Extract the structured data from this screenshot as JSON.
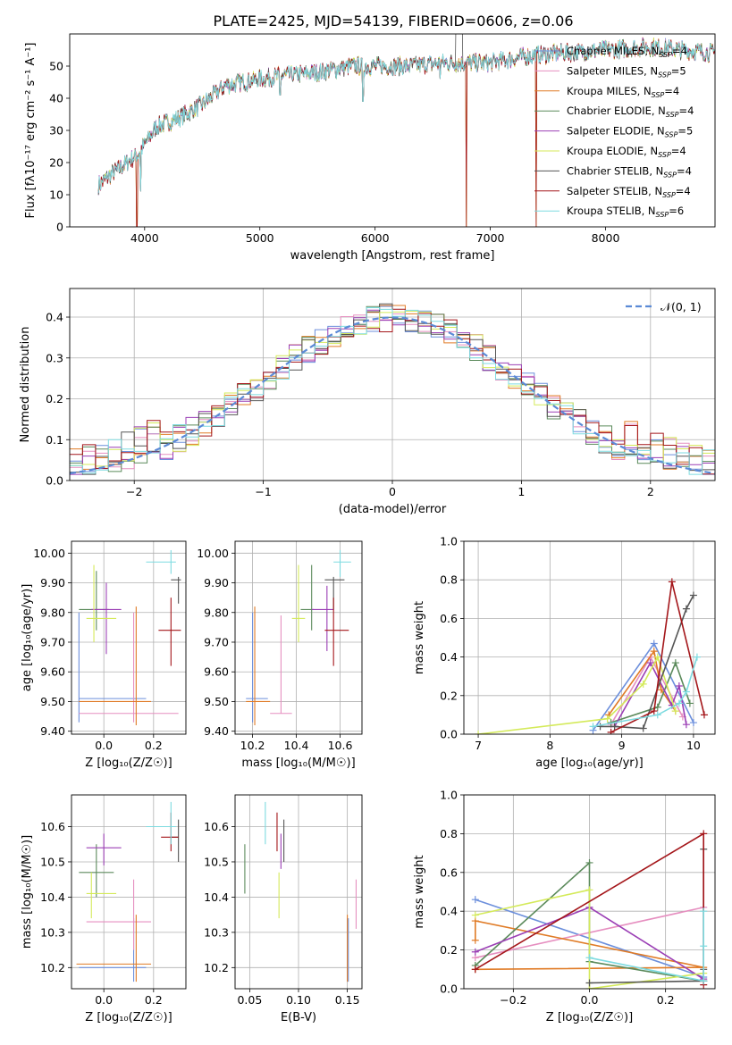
{
  "figure_title": "PLATE=2425, MJD=54139, FIBERID=0606, z=0.06",
  "models": [
    {
      "name": "Chabrier MILES",
      "nssp": "4",
      "color": "#6c8fdc"
    },
    {
      "name": "Salpeter MILES",
      "nssp": "5",
      "color": "#e68fc0"
    },
    {
      "name": "Kroupa MILES",
      "nssp": "4",
      "color": "#e07b26"
    },
    {
      "name": "Chabrier ELODIE",
      "nssp": "4",
      "color": "#5b8a5b"
    },
    {
      "name": "Salpeter ELODIE",
      "nssp": "5",
      "color": "#9b3fb5"
    },
    {
      "name": "Kroupa ELODIE",
      "nssp": "4",
      "color": "#d4ea5a"
    },
    {
      "name": "Chabrier STELIB",
      "nssp": "4",
      "color": "#555555"
    },
    {
      "name": "Salpeter STELIB",
      "nssp": "4",
      "color": "#a4161a"
    },
    {
      "name": "Kroupa STELIB",
      "nssp": "6",
      "color": "#7edbe0"
    }
  ],
  "chart_data": [
    {
      "id": "spectrum",
      "type": "line",
      "xlabel": "wavelength [Angstrom, rest frame]",
      "ylabel": "Flux [fλ10⁻¹⁷ erg cm⁻² s⁻¹ A⁻¹]",
      "xlim": [
        3350,
        8950
      ],
      "ylim": [
        0,
        60
      ],
      "xticks": [
        4000,
        5000,
        6000,
        7000,
        8000
      ],
      "yticks": [
        0,
        10,
        20,
        30,
        40,
        50
      ],
      "legend_loc": "right",
      "grid": false,
      "data_range": [
        3600,
        8950
      ],
      "continuum": [
        [
          3600,
          13
        ],
        [
          3700,
          16
        ],
        [
          3850,
          20
        ],
        [
          3950,
          23
        ],
        [
          4100,
          31
        ],
        [
          4300,
          34
        ],
        [
          4500,
          38
        ],
        [
          4700,
          44
        ],
        [
          5000,
          46
        ],
        [
          5200,
          47
        ],
        [
          5500,
          48
        ],
        [
          5800,
          50
        ],
        [
          6000,
          50
        ],
        [
          6300,
          50
        ],
        [
          6600,
          51
        ],
        [
          6800,
          51
        ],
        [
          7000,
          51
        ],
        [
          7300,
          53
        ],
        [
          7600,
          54
        ],
        [
          8000,
          55
        ],
        [
          8400,
          56
        ],
        [
          8950,
          54
        ]
      ],
      "downspikes": [
        [
          3933,
          0
        ],
        [
          3968,
          11
        ],
        [
          4861,
          43
        ],
        [
          5175,
          41
        ],
        [
          5895,
          39
        ],
        [
          6563,
          46
        ],
        [
          6790,
          0
        ],
        [
          7400,
          0
        ]
      ]
    },
    {
      "id": "residuals",
      "type": "step-histogram",
      "xlabel": "(data-model)/error",
      "ylabel": "Normed distribution",
      "xlim": [
        -2.5,
        2.5
      ],
      "ylim": [
        0,
        0.47
      ],
      "xticks": [
        -2,
        -1,
        0,
        1,
        2
      ],
      "yticks": [
        0.0,
        0.1,
        0.2,
        0.3,
        0.4
      ],
      "grid": true,
      "legend_loc": "top-right",
      "bin_width": 0.1,
      "bin_start": -2.5,
      "reference_label": "𝒩(0, 1)",
      "reference_color": "#5b8ad6"
    },
    {
      "id": "age-vs-Z",
      "type": "errorbar",
      "xlabel": "Z [log₁₀(Z/Z☉)]",
      "ylabel": "age  [log₁₀(age/yr)]",
      "xlim": [
        -0.13,
        0.33
      ],
      "ylim": [
        9.39,
        10.04
      ],
      "xticks": [
        0.0,
        0.2
      ],
      "yticks": [
        9.4,
        9.5,
        9.6,
        9.7,
        9.8,
        9.9,
        10.0
      ],
      "grid": true,
      "points": [
        {
          "x": -0.1,
          "xlo": -0.1,
          "xhi": 0.17,
          "y": 9.51,
          "ylo": 9.43,
          "yhi": 9.8
        },
        {
          "x": 0.12,
          "xlo": -0.1,
          "xhi": 0.3,
          "y": 9.46,
          "ylo": 9.43,
          "yhi": 9.8
        },
        {
          "x": 0.13,
          "xlo": -0.1,
          "xhi": 0.19,
          "y": 9.5,
          "ylo": 9.42,
          "yhi": 9.82
        },
        {
          "x": -0.03,
          "xlo": -0.1,
          "xhi": 0.02,
          "y": 9.81,
          "ylo": 9.74,
          "yhi": 9.94
        },
        {
          "x": 0.01,
          "xlo": -0.05,
          "xhi": 0.07,
          "y": 9.81,
          "ylo": 9.66,
          "yhi": 9.9
        },
        {
          "x": -0.04,
          "xlo": -0.07,
          "xhi": 0.05,
          "y": 9.78,
          "ylo": 9.7,
          "yhi": 9.96
        },
        {
          "x": 0.3,
          "xlo": 0.27,
          "xhi": 0.31,
          "y": 9.91,
          "ylo": 9.83,
          "yhi": 9.92
        },
        {
          "x": 0.27,
          "xlo": 0.22,
          "xhi": 0.31,
          "y": 9.74,
          "ylo": 9.62,
          "yhi": 9.85
        },
        {
          "x": 0.27,
          "xlo": 0.17,
          "xhi": 0.29,
          "y": 9.97,
          "ylo": 9.93,
          "yhi": 10.01
        }
      ]
    },
    {
      "id": "age-vs-mass",
      "type": "errorbar",
      "xlabel": "mass [log₁₀(M/M☉)]",
      "ylabel": "",
      "xlim": [
        10.12,
        10.7
      ],
      "ylim": [
        9.39,
        10.04
      ],
      "xticks": [
        10.2,
        10.4,
        10.6
      ],
      "yticks": [
        9.4,
        9.5,
        9.6,
        9.7,
        9.8,
        9.9,
        10.0
      ],
      "grid": true,
      "points": [
        {
          "x": 10.2,
          "xlo": 10.17,
          "xhi": 10.27,
          "y": 9.51,
          "ylo": 9.43,
          "yhi": 9.8
        },
        {
          "x": 10.33,
          "xlo": 10.28,
          "xhi": 10.38,
          "y": 9.46,
          "ylo": 9.46,
          "yhi": 9.79
        },
        {
          "x": 10.21,
          "xlo": 10.17,
          "xhi": 10.28,
          "y": 9.5,
          "ylo": 9.42,
          "yhi": 9.82
        },
        {
          "x": 10.47,
          "xlo": 10.42,
          "xhi": 10.48,
          "y": 9.81,
          "ylo": 9.74,
          "yhi": 9.96
        },
        {
          "x": 10.54,
          "xlo": 10.47,
          "xhi": 10.57,
          "y": 9.81,
          "ylo": 9.67,
          "yhi": 9.89
        },
        {
          "x": 10.41,
          "xlo": 10.38,
          "xhi": 10.44,
          "y": 9.78,
          "ylo": 9.7,
          "yhi": 9.96
        },
        {
          "x": 10.57,
          "xlo": 10.53,
          "xhi": 10.62,
          "y": 9.91,
          "ylo": 9.81,
          "yhi": 9.92
        },
        {
          "x": 10.57,
          "xlo": 10.53,
          "xhi": 10.64,
          "y": 9.74,
          "ylo": 9.62,
          "yhi": 9.85
        },
        {
          "x": 10.6,
          "xlo": 10.57,
          "xhi": 10.65,
          "y": 9.97,
          "ylo": 9.92,
          "yhi": 10.01
        }
      ]
    },
    {
      "id": "weight-vs-age",
      "type": "line",
      "xlabel": "age  [log₁₀(age/yr)]",
      "ylabel": "mass weight",
      "xlim": [
        6.8,
        10.3
      ],
      "ylim": [
        0,
        1
      ],
      "xticks": [
        7,
        8,
        9,
        10
      ],
      "yticks": [
        0.0,
        0.2,
        0.4,
        0.6,
        0.8,
        1.0
      ],
      "grid": true,
      "series": [
        {
          "points": [
            [
              8.6,
              0.02
            ],
            [
              9.45,
              0.47
            ],
            [
              10.0,
              0.06
            ]
          ]
        },
        {
          "points": [
            [
              8.85,
              0.05
            ],
            [
              9.4,
              0.4
            ],
            [
              9.85,
              0.09
            ]
          ]
        },
        {
          "points": [
            [
              8.82,
              0.1
            ],
            [
              9.45,
              0.43
            ],
            [
              9.55,
              0.23
            ],
            [
              9.75,
              0.12
            ]
          ]
        },
        {
          "points": [
            [
              8.85,
              0.06
            ],
            [
              9.5,
              0.14
            ],
            [
              9.75,
              0.37
            ],
            [
              9.95,
              0.16
            ]
          ]
        },
        {
          "points": [
            [
              8.9,
              0.04
            ],
            [
              9.4,
              0.37
            ],
            [
              9.7,
              0.15
            ],
            [
              9.8,
              0.25
            ],
            [
              9.9,
              0.05
            ]
          ]
        },
        {
          "points": [
            [
              7.0,
              0.0
            ],
            [
              8.8,
              0.08
            ],
            [
              9.3,
              0.26
            ],
            [
              9.5,
              0.4
            ],
            [
              9.75,
              0.12
            ]
          ]
        },
        {
          "points": [
            [
              8.7,
              0.04
            ],
            [
              8.9,
              0.04
            ],
            [
              9.3,
              0.03
            ],
            [
              9.9,
              0.65
            ],
            [
              10.0,
              0.72
            ]
          ]
        },
        {
          "points": [
            [
              8.85,
              0.01
            ],
            [
              9.45,
              0.12
            ],
            [
              9.7,
              0.79
            ],
            [
              10.15,
              0.1
            ]
          ]
        },
        {
          "points": [
            [
              8.6,
              0.04
            ],
            [
              9.5,
              0.1
            ],
            [
              9.8,
              0.16
            ],
            [
              9.9,
              0.22
            ],
            [
              10.05,
              0.4
            ]
          ]
        }
      ]
    },
    {
      "id": "mass-vs-Z",
      "type": "errorbar",
      "xlabel": "Z [log₁₀(Z/Z☉)]",
      "ylabel": "mass [log₁₀(M/M☉)]",
      "xlim": [
        -0.13,
        0.33
      ],
      "ylim": [
        10.14,
        10.69
      ],
      "xticks": [
        0.0,
        0.2
      ],
      "yticks": [
        10.2,
        10.3,
        10.4,
        10.5,
        10.6
      ],
      "grid": true,
      "points": [
        {
          "x": 0.12,
          "xlo": -0.1,
          "xhi": 0.17,
          "y": 10.2,
          "ylo": 10.16,
          "yhi": 10.34
        },
        {
          "x": 0.12,
          "xlo": -0.07,
          "xhi": 0.19,
          "y": 10.33,
          "ylo": 10.25,
          "yhi": 10.45
        },
        {
          "x": 0.13,
          "xlo": -0.11,
          "xhi": 0.19,
          "y": 10.21,
          "ylo": 10.16,
          "yhi": 10.35
        },
        {
          "x": -0.03,
          "xlo": -0.1,
          "xhi": 0.04,
          "y": 10.47,
          "ylo": 10.4,
          "yhi": 10.55
        },
        {
          "x": 0.0,
          "xlo": -0.07,
          "xhi": 0.07,
          "y": 10.54,
          "ylo": 10.49,
          "yhi": 10.58
        },
        {
          "x": -0.05,
          "xlo": -0.07,
          "xhi": 0.05,
          "y": 10.41,
          "ylo": 10.34,
          "yhi": 10.47
        },
        {
          "x": 0.3,
          "xlo": 0.27,
          "xhi": 0.3,
          "y": 10.57,
          "ylo": 10.5,
          "yhi": 10.62
        },
        {
          "x": 0.27,
          "xlo": 0.23,
          "xhi": 0.3,
          "y": 10.57,
          "ylo": 10.53,
          "yhi": 10.64
        },
        {
          "x": 0.27,
          "xlo": 0.17,
          "xhi": 0.29,
          "y": 10.6,
          "ylo": 10.55,
          "yhi": 10.67
        }
      ]
    },
    {
      "id": "mass-vs-EBV",
      "type": "errorbar",
      "xlabel": "E(B-V)",
      "ylabel": "",
      "xlim": [
        0.035,
        0.165
      ],
      "ylim": [
        10.14,
        10.69
      ],
      "xticks": [
        0.05,
        0.1,
        0.15
      ],
      "yticks": [
        10.2,
        10.3,
        10.4,
        10.5,
        10.6
      ],
      "grid": true,
      "points": [
        {
          "x": 0.151,
          "xlo": 0.151,
          "xhi": 0.151,
          "y": 10.2,
          "ylo": 10.16,
          "yhi": 10.34
        },
        {
          "x": 0.159,
          "xlo": 0.159,
          "xhi": 0.159,
          "y": 10.33,
          "ylo": 10.31,
          "yhi": 10.45
        },
        {
          "x": 0.15,
          "xlo": 0.15,
          "xhi": 0.15,
          "y": 10.21,
          "ylo": 10.16,
          "yhi": 10.35
        },
        {
          "x": 0.045,
          "xlo": 0.045,
          "xhi": 0.045,
          "y": 10.47,
          "ylo": 10.41,
          "yhi": 10.55
        },
        {
          "x": 0.082,
          "xlo": 0.082,
          "xhi": 0.082,
          "y": 10.54,
          "ylo": 10.48,
          "yhi": 10.58
        },
        {
          "x": 0.08,
          "xlo": 0.08,
          "xhi": 0.08,
          "y": 10.41,
          "ylo": 10.34,
          "yhi": 10.47
        },
        {
          "x": 0.085,
          "xlo": 0.085,
          "xhi": 0.085,
          "y": 10.57,
          "ylo": 10.5,
          "yhi": 10.62
        },
        {
          "x": 0.078,
          "xlo": 0.078,
          "xhi": 0.078,
          "y": 10.57,
          "ylo": 10.53,
          "yhi": 10.64
        },
        {
          "x": 0.066,
          "xlo": 0.066,
          "xhi": 0.066,
          "y": 10.6,
          "ylo": 10.55,
          "yhi": 10.67
        }
      ]
    },
    {
      "id": "weight-vs-Z",
      "type": "line",
      "xlabel": "Z [log₁₀(Z/Z☉)]",
      "ylabel": "mass weight",
      "xlim": [
        -0.33,
        0.33
      ],
      "ylim": [
        0,
        1
      ],
      "xticks": [
        -0.2,
        0.0,
        0.2
      ],
      "yticks": [
        0.0,
        0.2,
        0.4,
        0.6,
        0.8,
        1.0
      ],
      "grid": true,
      "series": [
        {
          "points": [
            [
              -0.3,
              0.46
            ],
            [
              0.3,
              0.06
            ]
          ]
        },
        {
          "points": [
            [
              -0.3,
              0.16
            ],
            [
              0.3,
              0.42
            ]
          ]
        },
        {
          "points": [
            [
              -0.3,
              0.1
            ],
            [
              0.3,
              0.11
            ],
            [
              -0.3,
              0.35
            ],
            [
              -0.3,
              0.25
            ]
          ]
        },
        {
          "points": [
            [
              -0.3,
              0.12
            ],
            [
              0.0,
              0.65
            ],
            [
              0.0,
              0.14
            ],
            [
              0.3,
              0.04
            ]
          ]
        },
        {
          "points": [
            [
              -0.3,
              0.19
            ],
            [
              0.0,
              0.42
            ],
            [
              0.3,
              0.05
            ]
          ]
        },
        {
          "points": [
            [
              -0.3,
              0.38
            ],
            [
              0.0,
              0.51
            ],
            [
              0.0,
              0.0
            ],
            [
              0.3,
              0.08
            ]
          ]
        },
        {
          "points": [
            [
              0.0,
              0.03
            ],
            [
              0.3,
              0.04
            ],
            [
              0.3,
              0.72
            ],
            [
              0.3,
              0.1
            ]
          ]
        },
        {
          "points": [
            [
              -0.3,
              0.1
            ],
            [
              0.3,
              0.8
            ],
            [
              0.3,
              0.02
            ]
          ]
        },
        {
          "points": [
            [
              0.0,
              0.16
            ],
            [
              0.3,
              0.04
            ],
            [
              0.3,
              0.4
            ],
            [
              0.3,
              0.22
            ]
          ]
        }
      ]
    }
  ]
}
